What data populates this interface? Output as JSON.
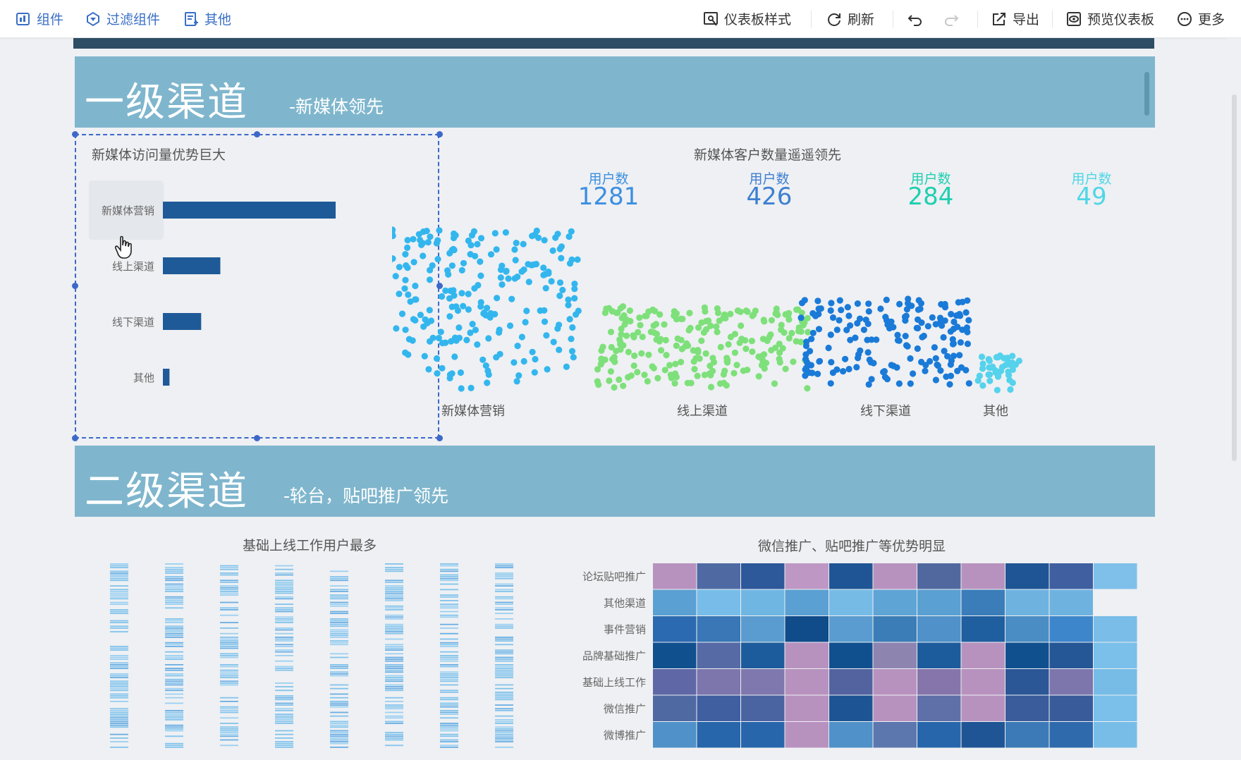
{
  "toolbar": {
    "left": [
      {
        "label": "组件",
        "icon": "component-icon"
      },
      {
        "label": "过滤组件",
        "icon": "filter-component-icon"
      },
      {
        "label": "其他",
        "icon": "other-icon"
      }
    ],
    "right": [
      {
        "label": "仪表板样式",
        "icon": "dashboard-style-icon"
      },
      {
        "label": "刷新",
        "icon": "refresh-icon"
      },
      {
        "label": "",
        "icon": "undo-icon"
      },
      {
        "label": "",
        "icon": "redo-icon"
      },
      {
        "label": "导出",
        "icon": "export-icon"
      },
      {
        "label": "预览仪表板",
        "icon": "preview-icon"
      },
      {
        "label": "更多",
        "icon": "more-icon"
      }
    ]
  },
  "section1": {
    "title": "一级渠道",
    "subtitle": "-新媒体领先"
  },
  "section2": {
    "title": "二级渠道",
    "subtitle": "-轮台，贴吧推广领先"
  },
  "colors": {
    "band": "#7fb6cd",
    "bar": "#1f5a98",
    "selection": "#3d68c9"
  },
  "bar_chart": {
    "title": "新媒体访问量优势巨大",
    "chart_data": {
      "type": "bar",
      "orientation": "horizontal",
      "categories": [
        "新媒体营销",
        "线上渠道",
        "线下渠道",
        "其他"
      ],
      "values": [
        1281,
        426,
        284,
        49
      ]
    }
  },
  "scatter_chart": {
    "title": "新媒体客户数量遥遥领先",
    "kpis": [
      {
        "label": "用户数",
        "value": "1281",
        "color": "#3b8fe0"
      },
      {
        "label": "用户数",
        "value": "426",
        "color": "#3d7fd0"
      },
      {
        "label": "用户数",
        "value": "284",
        "color": "#1fcfb0"
      },
      {
        "label": "用户数",
        "value": "49",
        "color": "#4fd6e6"
      }
    ],
    "chart_data": {
      "type": "scatter",
      "categories": [
        "新媒体营销",
        "线上渠道",
        "线下渠道",
        "其他"
      ],
      "counts": [
        1281,
        426,
        284,
        49
      ],
      "colors": [
        "#33b6ee",
        "#7ee07a",
        "#1a7ad8",
        "#55d2ec"
      ]
    }
  },
  "barcode_chart": {
    "title": "基础上线工作用户最多",
    "chart_data": {
      "type": "strip",
      "columns": 8
    }
  },
  "heatmap": {
    "title": "微信推广、贴吧推广等优势明显",
    "chart_data": {
      "type": "heatmap",
      "rows": [
        "论坛贴吧推广",
        "其他渠道",
        "事件营销",
        "品牌基础推广",
        "基础上线工作",
        "微信推广",
        "微博推广"
      ],
      "matrix": [
        [
          "#b892bf",
          "#4f6aa3",
          "#2d589a",
          "#be97c4",
          "#1f5594",
          "#b892bf",
          "#51689f",
          "#b892bf",
          "#1f5594",
          "#3f5fa0",
          "#7fc0ea"
        ],
        [
          "#5aa0d2",
          "#78bde9",
          "#70b6e2",
          "#5aa0d2",
          "#76bbe6",
          "#5ea4d5",
          "#5aa0d2",
          "#3a7db9",
          "#6eb2e0",
          "#6eb2e0",
          ""
        ],
        [
          "#2b6ab0",
          "#3977b6",
          "#5a9ccf",
          "#104b8a",
          "#5a9ccf",
          "#3b7db6",
          "#4f91c8",
          "#1f5e9f",
          "#4a8dc4",
          "#3d86cb",
          "#79bde8"
        ],
        [
          "#11508f",
          "#566aa6",
          "#1d5c9c",
          "#b892bf",
          "#11508f",
          "#8d85b0",
          "#1d5c9c",
          "#b892bf",
          "#11508f",
          "#255695",
          "#7ac0ea"
        ],
        [
          "#5f67a7",
          "#7d76ad",
          "#7f78ae",
          "#b892bf",
          "#53639f",
          "#b892bf",
          "#8675ab",
          "#b892bf",
          "#2b5797",
          "#7d76ad",
          "#76bce7"
        ],
        [
          "#4f6aa3",
          "#3f5fa0",
          "#4a64a2",
          "#b892bf",
          "#1d5594",
          "#b892bf",
          "#5f70a8",
          "#b892bf",
          "#3b5c9b",
          "#3a5b9a",
          "#7ac0ea"
        ],
        [
          "#4f91c8",
          "#2766ab",
          "#2766ab",
          "#b892bf",
          "#4f91c8",
          "#5b77ae",
          "#2766ab",
          "#1f5594",
          "#3b7ab6",
          "#2f6aac",
          "#78bde8"
        ]
      ]
    }
  }
}
